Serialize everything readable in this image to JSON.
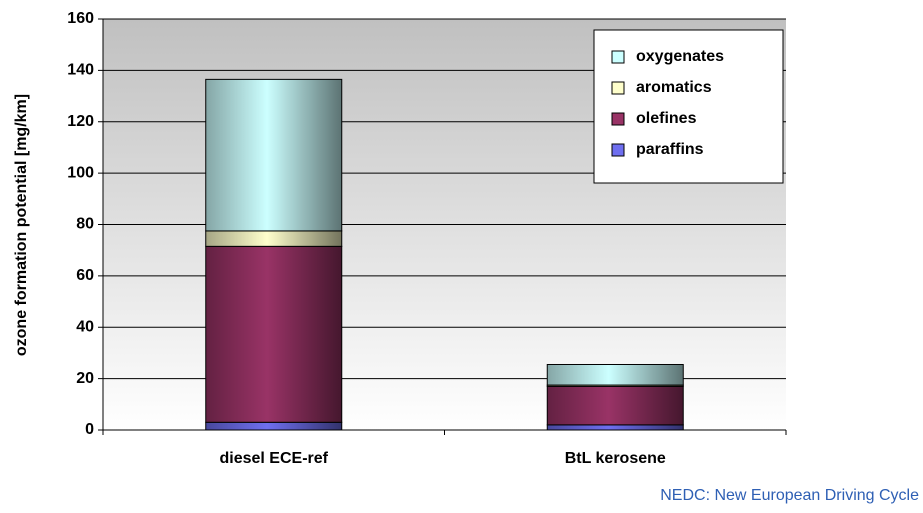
{
  "chart_data": {
    "type": "stacked_bar",
    "y_label": "ozone formation potential [mg/km]",
    "categories": [
      "diesel ECE-ref",
      "BtL kerosene"
    ],
    "series": [
      {
        "name": "paraffins",
        "color": "#6f6ff0",
        "values": [
          3,
          2
        ]
      },
      {
        "name": "olefines",
        "color": "#993366",
        "values": [
          68.5,
          15
        ]
      },
      {
        "name": "aromatics",
        "color": "#ffffcc",
        "values": [
          6,
          0.5
        ]
      },
      {
        "name": "oxygenates",
        "color": "#ccffff",
        "values": [
          59,
          8
        ]
      }
    ],
    "ylim": [
      0,
      160
    ],
    "yticks": [
      0,
      20,
      40,
      60,
      80,
      100,
      120,
      140,
      160
    ],
    "grid": true,
    "legend": "top-right",
    "annotation": "NEDC: New European Driving Cycle"
  }
}
